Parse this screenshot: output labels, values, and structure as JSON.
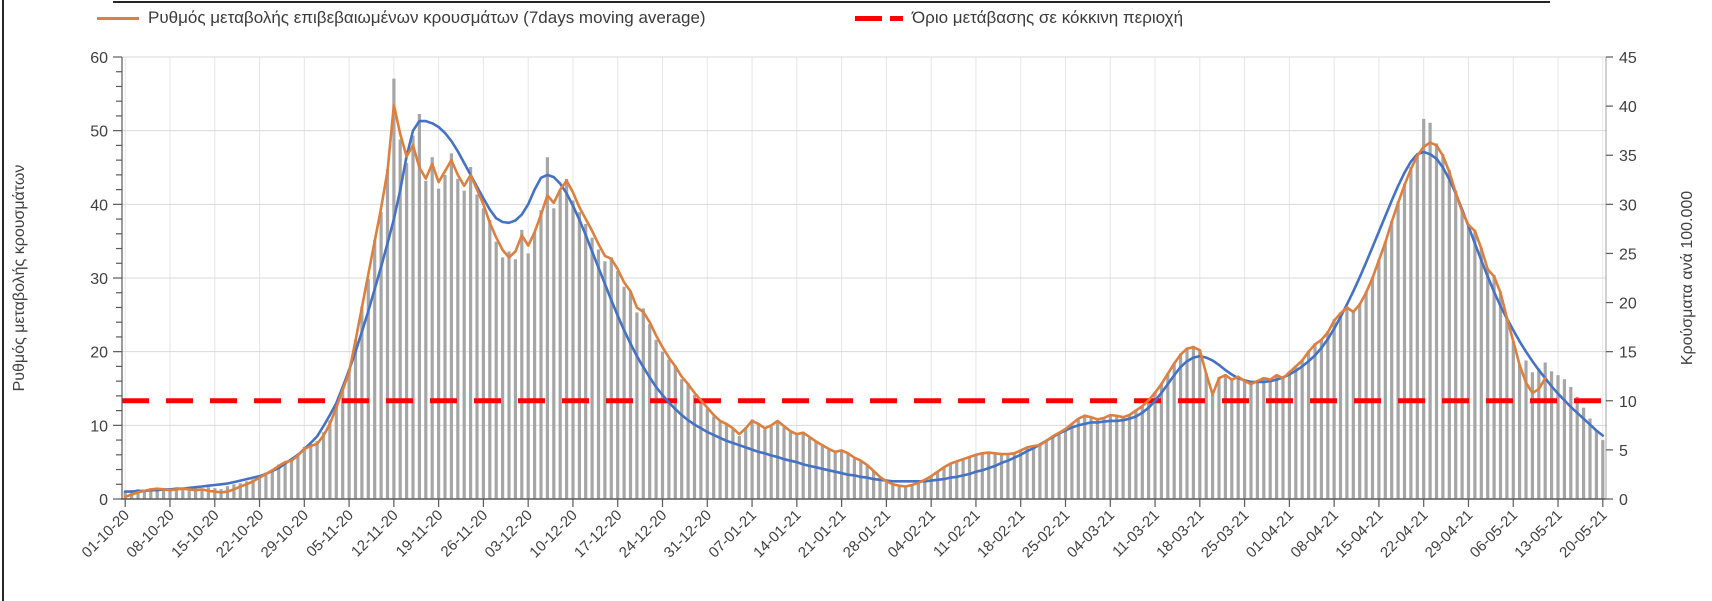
{
  "colors": {
    "bar": "#A6A6A6",
    "smoothed_line": "#4472C4",
    "moving_avg_line": "#DF7F3E",
    "threshold": "#FF0000",
    "grid_h": "#D9D9D9",
    "grid_v": "#E6E6E6",
    "axis": "#595959",
    "axis_right": "#A0A0A0"
  },
  "legend": [
    {
      "label": "Ρυθμός μεταβολής επιβεβαιωμένων κρουσμάτων (7days moving average)",
      "marker": "solid-orange-line"
    },
    {
      "label": "Όριο μετάβασης σε κόκκινη περιοχή",
      "marker": "red-dashed-line"
    }
  ],
  "chart_data": {
    "type": "bar",
    "subtype": "combo-bar-line-dual-axis",
    "frequency": "daily",
    "start_date": "01-10-20",
    "end_date": "20-05-21",
    "n_points": 232,
    "x_tick_labels": [
      "01-10-20",
      "08-10-20",
      "15-10-20",
      "22-10-20",
      "29-10-20",
      "05-11-20",
      "12-11-20",
      "19-11-20",
      "26-11-20",
      "03-12-20",
      "10-12-20",
      "17-12-20",
      "24-12-20",
      "31-12-20",
      "07-01-21",
      "14-01-21",
      "21-01-21",
      "28-01-21",
      "04-02-21",
      "11-02-21",
      "18-02-21",
      "25-02-21",
      "04-03-21",
      "11-03-21",
      "18-03-21",
      "25-03-21",
      "01-04-21",
      "08-04-21",
      "15-04-21",
      "22-04-21",
      "29-04-21",
      "06-05-21",
      "13-05-21",
      "20-05-21"
    ],
    "x_tick_every_days": 7,
    "left_axis": {
      "title": "Ρυθμός μεταβολής κρουσμάτων",
      "min": 0,
      "max": 60,
      "tick_step": 10,
      "minor_step": 2,
      "tick_labels": [
        0,
        10,
        20,
        30,
        40,
        50,
        60
      ]
    },
    "right_axis": {
      "title": "Κρούσματα ανά 100.000",
      "min": 0,
      "max": 45,
      "tick_step": 5,
      "tick_labels": [
        0,
        5,
        10,
        15,
        20,
        25,
        30,
        35,
        40,
        45
      ]
    },
    "grid": {
      "horizontal_step_left_axis": 10,
      "vertical_weekly": true
    },
    "legend_position": "top",
    "threshold": {
      "label": "Όριο μετάβασης σε κόκκινη περιοχή",
      "value_left_axis": 13.33,
      "value_right_axis": 10
    },
    "series": [
      {
        "name": "Κρούσματα ανά 100.000 (bars)",
        "type": "bar",
        "axis": "right",
        "values": [
          0.8,
          0.9,
          1.0,
          0.9,
          1.1,
          1.0,
          0.9,
          1.0,
          1.1,
          1.0,
          1.2,
          1.1,
          1.0,
          1.2,
          1.1,
          1.0,
          1.3,
          1.5,
          1.6,
          1.8,
          2.0,
          2.3,
          2.7,
          3.0,
          3.5,
          3.8,
          4.0,
          4.6,
          5.3,
          5.6,
          5.9,
          6.8,
          8.0,
          9.6,
          11.4,
          13.2,
          16.2,
          19.6,
          22.4,
          26.4,
          29.2,
          33.6,
          42.8,
          36.6,
          34.2,
          37.0,
          39.2,
          32.4,
          34.8,
          31.6,
          33.0,
          35.2,
          32.6,
          31.4,
          33.8,
          31.0,
          29.6,
          28.4,
          26.2,
          24.6,
          25.2,
          24.4,
          27.4,
          25.0,
          27.2,
          29.4,
          34.8,
          29.6,
          31.4,
          32.6,
          30.4,
          29.2,
          28.0,
          26.6,
          25.4,
          24.2,
          24.6,
          23.2,
          21.6,
          21.2,
          19.0,
          19.4,
          17.8,
          16.2,
          15.0,
          14.2,
          13.6,
          12.2,
          11.8,
          10.6,
          9.8,
          9.2,
          8.4,
          7.9,
          7.7,
          7.1,
          6.4,
          7.3,
          8.1,
          7.7,
          7.1,
          7.5,
          8.0,
          7.3,
          6.8,
          6.5,
          6.8,
          6.2,
          5.8,
          5.4,
          5.0,
          4.7,
          4.9,
          4.6,
          4.1,
          3.8,
          3.4,
          2.8,
          2.2,
          1.7,
          1.5,
          1.4,
          1.3,
          1.5,
          1.7,
          2.0,
          2.4,
          2.8,
          3.3,
          3.6,
          3.8,
          4.0,
          4.3,
          4.5,
          4.7,
          4.8,
          4.7,
          4.6,
          4.6,
          4.7,
          5.0,
          5.3,
          5.4,
          5.5,
          6.0,
          6.4,
          6.8,
          7.2,
          7.7,
          8.2,
          8.6,
          8.4,
          8.2,
          8.3,
          8.6,
          8.5,
          8.4,
          8.6,
          9.1,
          9.5,
          10.1,
          10.9,
          11.8,
          12.8,
          13.9,
          14.8,
          15.4,
          15.6,
          15.2,
          12.8,
          10.7,
          12.4,
          12.7,
          12.2,
          12.5,
          12.1,
          11.8,
          12.1,
          12.4,
          12.2,
          12.7,
          12.4,
          13.0,
          13.6,
          14.2,
          15.1,
          15.8,
          16.3,
          17.1,
          18.3,
          19.0,
          19.6,
          19.2,
          19.9,
          21.1,
          22.6,
          24.4,
          26.2,
          28.3,
          30.3,
          32.1,
          33.8,
          35.1,
          38.7,
          38.3,
          36.2,
          35.1,
          33.5,
          31.4,
          29.4,
          28.0,
          27.4,
          25.6,
          23.5,
          22.8,
          21.1,
          18.5,
          16.1,
          13.7,
          14.1,
          12.9,
          13.3,
          13.9,
          13.0,
          12.6,
          12.2,
          11.4,
          10.4,
          9.3,
          8.2,
          7.0,
          6.0
        ]
      },
      {
        "name": "Ρυθμός μεταβολής κρουσμάτων (smoothed)",
        "type": "line",
        "axis": "left",
        "values": [
          1.0,
          1.0,
          1.1,
          1.1,
          1.2,
          1.2,
          1.3,
          1.3,
          1.4,
          1.4,
          1.5,
          1.6,
          1.7,
          1.8,
          1.9,
          2.0,
          2.1,
          2.3,
          2.5,
          2.7,
          2.9,
          3.1,
          3.4,
          3.8,
          4.2,
          4.8,
          5.4,
          6.0,
          6.8,
          7.6,
          8.5,
          9.9,
          11.4,
          13.0,
          15.2,
          17.5,
          20.0,
          22.7,
          25.5,
          28.5,
          31.5,
          34.7,
          38.0,
          42.0,
          46.5,
          50.0,
          51.3,
          51.3,
          51.0,
          50.5,
          49.7,
          48.6,
          47.2,
          45.6,
          44.0,
          42.4,
          40.8,
          39.3,
          38.1,
          37.6,
          37.5,
          37.8,
          38.6,
          40.0,
          42.0,
          43.6,
          44.0,
          43.7,
          42.8,
          41.5,
          39.8,
          37.9,
          35.8,
          33.6,
          31.4,
          29.2,
          27.0,
          24.9,
          22.9,
          21.1,
          19.4,
          17.9,
          16.5,
          15.2,
          14.1,
          13.1,
          12.2,
          11.4,
          10.7,
          10.1,
          9.6,
          9.1,
          8.7,
          8.3,
          7.9,
          7.6,
          7.3,
          7.0,
          6.7,
          6.4,
          6.2,
          5.9,
          5.7,
          5.4,
          5.2,
          5.0,
          4.7,
          4.5,
          4.3,
          4.1,
          3.9,
          3.7,
          3.5,
          3.3,
          3.2,
          3.0,
          2.9,
          2.7,
          2.6,
          2.5,
          2.4,
          2.4,
          2.4,
          2.4,
          2.4,
          2.4,
          2.5,
          2.6,
          2.7,
          2.9,
          3.0,
          3.2,
          3.4,
          3.7,
          3.9,
          4.2,
          4.5,
          4.9,
          5.2,
          5.6,
          6.0,
          6.5,
          6.9,
          7.4,
          7.9,
          8.4,
          8.9,
          9.3,
          9.7,
          10.0,
          10.2,
          10.4,
          10.4,
          10.5,
          10.6,
          10.6,
          10.7,
          10.9,
          11.2,
          11.7,
          12.4,
          13.3,
          14.4,
          15.6,
          16.8,
          17.9,
          18.7,
          19.2,
          19.4,
          19.2,
          18.8,
          18.2,
          17.5,
          16.9,
          16.4,
          16.1,
          15.9,
          15.9,
          15.9,
          16.0,
          16.2,
          16.5,
          16.9,
          17.4,
          18.0,
          18.7,
          19.5,
          20.5,
          21.7,
          23.1,
          24.7,
          26.4,
          28.2,
          30.1,
          32.1,
          34.2,
          36.3,
          38.4,
          40.5,
          42.5,
          44.3,
          45.8,
          46.8,
          47.1,
          46.8,
          46.2,
          45.0,
          43.4,
          41.5,
          39.3,
          37.0,
          34.7,
          32.4,
          30.2,
          28.1,
          26.2,
          24.5,
          22.9,
          21.4,
          20.0,
          18.7,
          17.5,
          16.4,
          15.3,
          14.3,
          13.4,
          12.5,
          11.7,
          10.9,
          10.1,
          9.3,
          8.6
        ]
      },
      {
        "name": "Ρυθμός μεταβολής επιβεβαιωμένων κρουσμάτων (7days moving average)",
        "type": "line",
        "axis": "left",
        "values": [
          0.3,
          0.6,
          0.9,
          1.1,
          1.3,
          1.4,
          1.3,
          1.2,
          1.3,
          1.4,
          1.3,
          1.2,
          1.3,
          1.1,
          1.0,
          0.9,
          1.0,
          1.3,
          1.7,
          2.0,
          2.4,
          2.9,
          3.4,
          3.9,
          4.5,
          5.0,
          5.2,
          5.9,
          6.8,
          7.2,
          7.5,
          8.6,
          10.2,
          12.4,
          14.8,
          17.2,
          21.5,
          26.0,
          30.5,
          35.0,
          39.5,
          44.5,
          53.5,
          49.5,
          46.5,
          48.0,
          45.0,
          43.5,
          45.5,
          43.0,
          44.5,
          46.0,
          44.0,
          42.5,
          44.0,
          42.0,
          40.0,
          37.5,
          35.5,
          33.8,
          32.8,
          33.6,
          35.8,
          34.4,
          36.2,
          38.6,
          41.2,
          40.2,
          42.0,
          43.2,
          41.6,
          39.6,
          38.0,
          36.4,
          34.6,
          33.0,
          32.6,
          31.2,
          29.4,
          28.2,
          26.0,
          25.4,
          24.0,
          22.2,
          20.6,
          19.2,
          18.0,
          16.6,
          15.6,
          14.4,
          13.4,
          12.4,
          11.4,
          10.6,
          10.2,
          9.6,
          8.8,
          9.6,
          10.6,
          10.2,
          9.6,
          10.0,
          10.6,
          9.9,
          9.2,
          8.8,
          9.0,
          8.4,
          7.8,
          7.3,
          6.8,
          6.4,
          6.6,
          6.2,
          5.6,
          5.2,
          4.6,
          3.8,
          3.0,
          2.4,
          2.0,
          1.8,
          1.7,
          1.9,
          2.2,
          2.6,
          3.1,
          3.7,
          4.3,
          4.8,
          5.1,
          5.4,
          5.7,
          6.0,
          6.2,
          6.3,
          6.2,
          6.1,
          6.1,
          6.2,
          6.6,
          7.0,
          7.2,
          7.3,
          7.9,
          8.5,
          9.0,
          9.5,
          10.2,
          10.9,
          11.3,
          11.1,
          10.8,
          11.0,
          11.4,
          11.3,
          11.1,
          11.4,
          12.0,
          12.6,
          13.4,
          14.4,
          15.6,
          17.0,
          18.4,
          19.6,
          20.4,
          20.6,
          20.2,
          17.0,
          14.2,
          16.4,
          16.8,
          16.2,
          16.6,
          16.0,
          15.6,
          16.0,
          16.4,
          16.2,
          16.8,
          16.4,
          17.2,
          18.0,
          18.8,
          20.0,
          21.0,
          21.6,
          22.6,
          24.2,
          25.2,
          26.0,
          25.4,
          26.4,
          28.0,
          30.0,
          32.4,
          34.8,
          37.6,
          40.2,
          42.6,
          44.8,
          46.6,
          47.8,
          48.4,
          48.0,
          46.6,
          44.4,
          41.6,
          39.0,
          37.2,
          36.4,
          34.0,
          31.2,
          30.2,
          28.0,
          24.6,
          21.4,
          18.2,
          15.8,
          14.4,
          14.9,
          16.4,
          null,
          null,
          null,
          null,
          null,
          null,
          null,
          null,
          null
        ]
      }
    ]
  }
}
